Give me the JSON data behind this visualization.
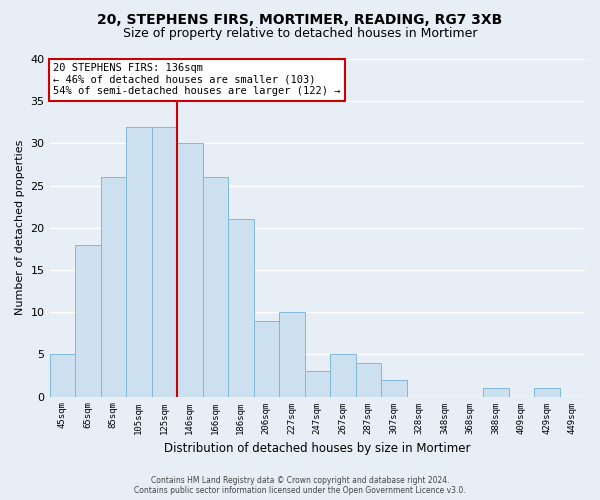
{
  "title": "20, STEPHENS FIRS, MORTIMER, READING, RG7 3XB",
  "subtitle": "Size of property relative to detached houses in Mortimer",
  "xlabel": "Distribution of detached houses by size in Mortimer",
  "ylabel": "Number of detached properties",
  "bar_color": "#cce0f0",
  "bar_edge_color": "#7fb8dc",
  "background_color": "#e8eef5",
  "grid_color": "#ffffff",
  "bin_labels": [
    "45sqm",
    "65sqm",
    "85sqm",
    "105sqm",
    "125sqm",
    "146sqm",
    "166sqm",
    "186sqm",
    "206sqm",
    "227sqm",
    "247sqm",
    "267sqm",
    "287sqm",
    "307sqm",
    "328sqm",
    "348sqm",
    "368sqm",
    "388sqm",
    "409sqm",
    "429sqm",
    "449sqm"
  ],
  "bar_heights": [
    5,
    18,
    26,
    32,
    32,
    30,
    26,
    21,
    9,
    10,
    3,
    5,
    4,
    2,
    0,
    0,
    0,
    1,
    0,
    1,
    0
  ],
  "ylim": [
    0,
    40
  ],
  "yticks": [
    0,
    5,
    10,
    15,
    20,
    25,
    30,
    35,
    40
  ],
  "vline_x_index": 5,
  "vline_color": "#cc0000",
  "annotation_title": "20 STEPHENS FIRS: 136sqm",
  "annotation_line1": "← 46% of detached houses are smaller (103)",
  "annotation_line2": "54% of semi-detached houses are larger (122) →",
  "footer_line1": "Contains HM Land Registry data © Crown copyright and database right 2024.",
  "footer_line2": "Contains public sector information licensed under the Open Government Licence v3.0."
}
